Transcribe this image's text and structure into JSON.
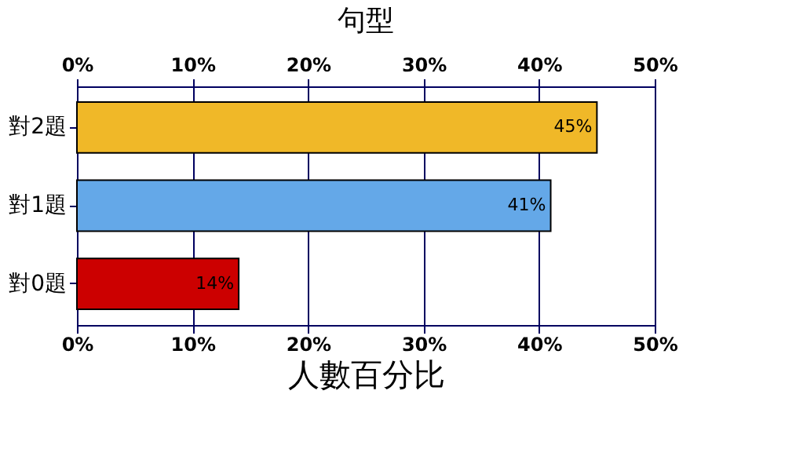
{
  "chart_data": {
    "type": "bar",
    "orientation": "horizontal",
    "title": "句型",
    "xlabel": "人數百分比",
    "categories": [
      "對2題",
      "對1題",
      "對0題"
    ],
    "values": [
      45,
      41,
      14
    ],
    "colors": [
      "#f0b828",
      "#64a8e8",
      "#cc0000"
    ],
    "value_labels": [
      "45%",
      "41%",
      "14%"
    ],
    "xlim": [
      0,
      50
    ],
    "xticks": [
      {
        "value": 0,
        "label": "0%"
      },
      {
        "value": 10,
        "label": "10%"
      },
      {
        "value": 20,
        "label": "20%"
      },
      {
        "value": 30,
        "label": "30%"
      },
      {
        "value": 40,
        "label": "40%"
      },
      {
        "value": 50,
        "label": "50%"
      }
    ],
    "x2lim": [
      0,
      50
    ],
    "x2ticks": [
      {
        "value": 0,
        "label": "0%"
      },
      {
        "value": 10,
        "label": "10%"
      },
      {
        "value": 20,
        "label": "20%"
      },
      {
        "value": 30,
        "label": "30%"
      },
      {
        "value": 40,
        "label": "40%"
      },
      {
        "value": 50,
        "label": "50%"
      }
    ],
    "grid": "x"
  }
}
